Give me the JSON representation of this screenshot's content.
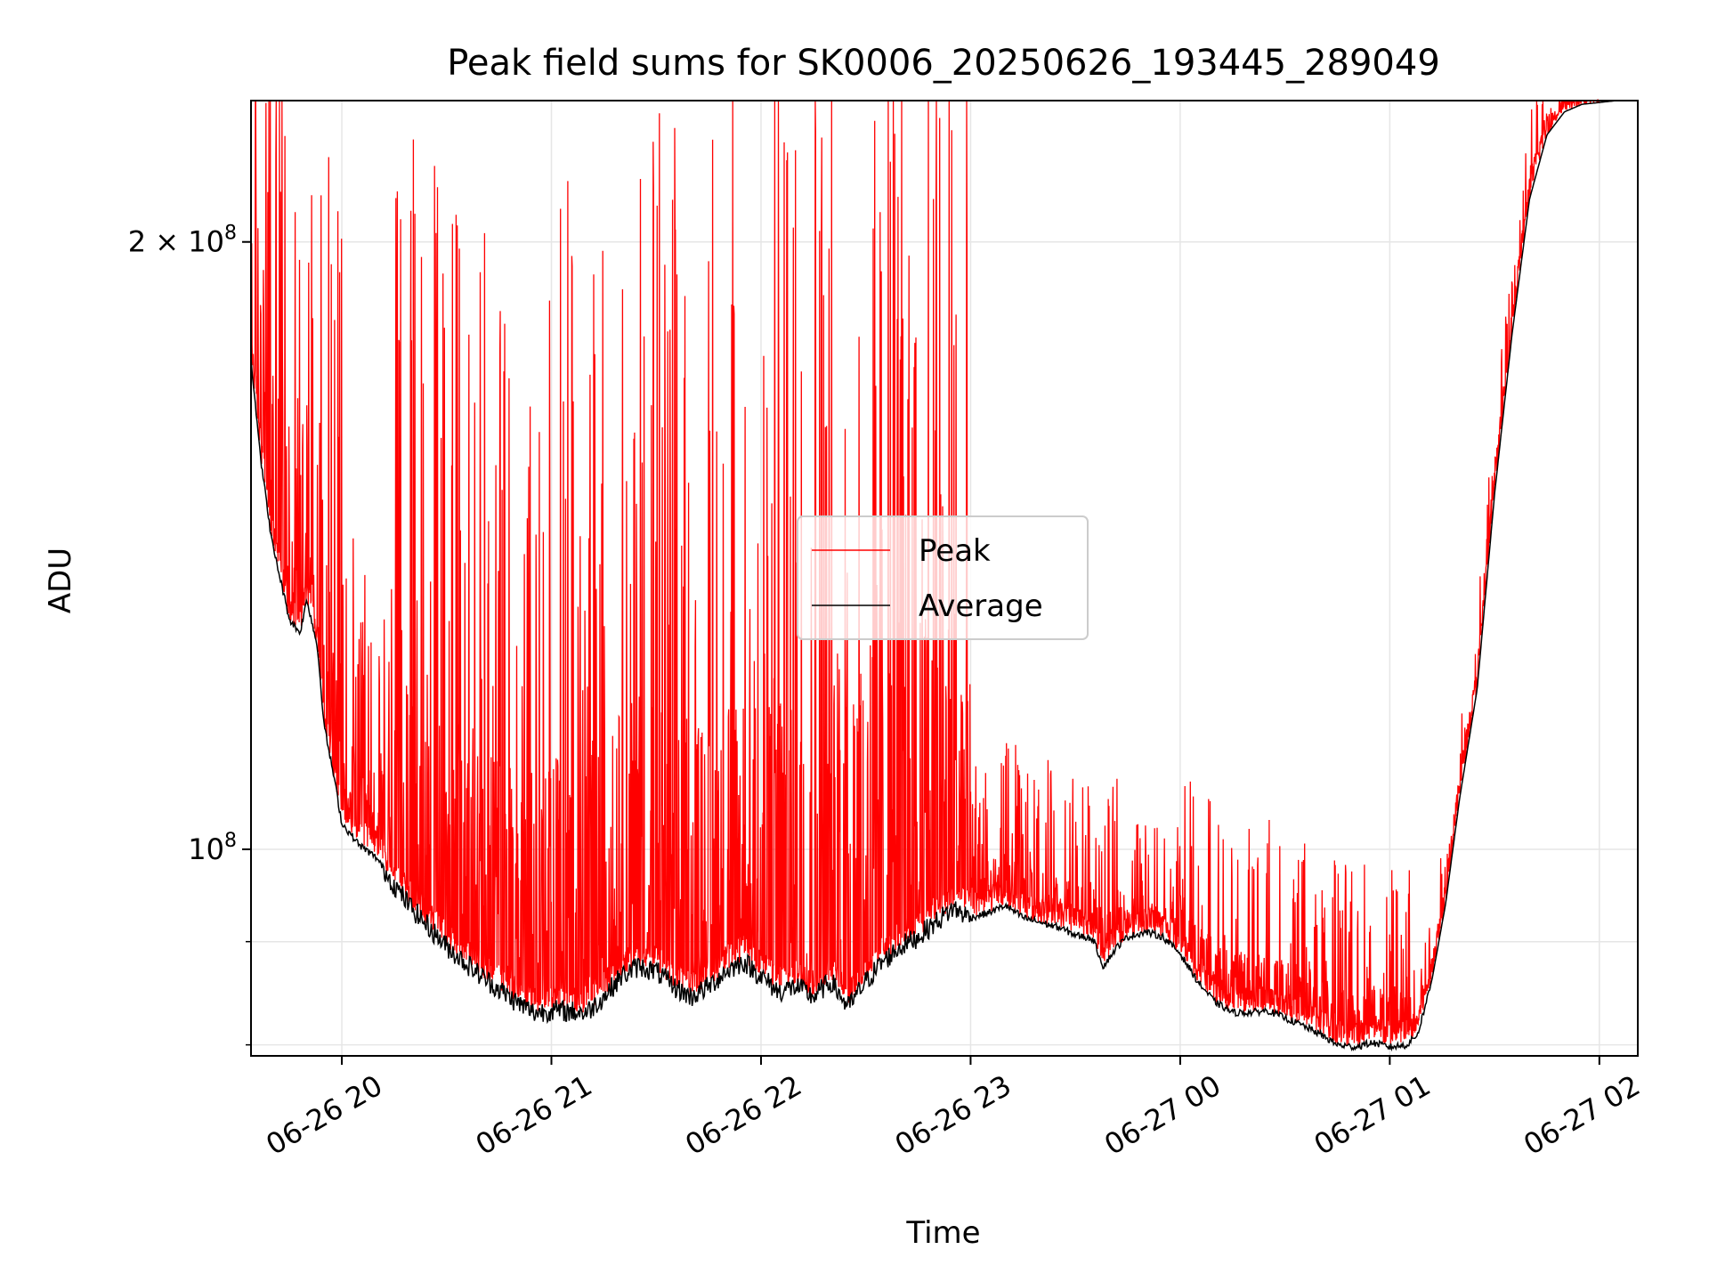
{
  "chart_data": {
    "type": "line",
    "title": "Peak field sums for SK0006_20250626_193445_289049",
    "xlabel": "Time",
    "ylabel": "ADU",
    "y_scale": "log",
    "ylim": [
      79000000,
      235000000
    ],
    "xlim": [
      "06-26 19:34",
      "06-27 02:11"
    ],
    "x_ticks": [
      {
        "t": "06-26 20:00",
        "label": "06-26 20"
      },
      {
        "t": "06-26 21:00",
        "label": "06-26 21"
      },
      {
        "t": "06-26 22:00",
        "label": "06-26 22"
      },
      {
        "t": "06-26 23:00",
        "label": "06-26 23"
      },
      {
        "t": "06-27 00:00",
        "label": "06-27 00"
      },
      {
        "t": "06-27 01:00",
        "label": "06-27 01"
      },
      {
        "t": "06-27 02:00",
        "label": "06-27 02"
      }
    ],
    "y_ticks": [
      {
        "v": 100000000,
        "base": "10",
        "exp": "8",
        "coef": ""
      },
      {
        "v": 200000000,
        "base": "10",
        "exp": "8",
        "coef": "2 × "
      }
    ],
    "y_minor_ticks": [
      80000000,
      90000000
    ],
    "grid": true,
    "legend_position": "center",
    "series": [
      {
        "name": "Average",
        "color": "#000000",
        "points": [
          [
            "06-26 19:34",
            175000000
          ],
          [
            "06-26 19:37",
            155000000
          ],
          [
            "06-26 19:40",
            142000000
          ],
          [
            "06-26 19:45",
            130000000
          ],
          [
            "06-26 19:48",
            128000000
          ],
          [
            "06-26 19:50",
            133000000
          ],
          [
            "06-26 19:53",
            126000000
          ],
          [
            "06-26 19:55",
            115000000
          ],
          [
            "06-26 19:58",
            108000000
          ],
          [
            "06-26 20:00",
            103000000
          ],
          [
            "06-26 20:05",
            100500000
          ],
          [
            "06-26 20:10",
            99000000
          ],
          [
            "06-26 20:15",
            96000000
          ],
          [
            "06-26 20:20",
            93500000
          ],
          [
            "06-26 20:30",
            89500000
          ],
          [
            "06-26 20:40",
            86500000
          ],
          [
            "06-26 20:50",
            84000000
          ],
          [
            "06-26 20:55",
            83000000
          ],
          [
            "06-26 21:00",
            83200000
          ],
          [
            "06-26 21:10",
            83000000
          ],
          [
            "06-26 21:15",
            84500000
          ],
          [
            "06-26 21:20",
            86500000
          ],
          [
            "06-26 21:25",
            87500000
          ],
          [
            "06-26 21:30",
            87000000
          ],
          [
            "06-26 21:35",
            85500000
          ],
          [
            "06-26 21:40",
            84500000
          ],
          [
            "06-26 21:45",
            85500000
          ],
          [
            "06-26 21:50",
            87000000
          ],
          [
            "06-26 21:55",
            88000000
          ],
          [
            "06-26 22:00",
            86500000
          ],
          [
            "06-26 22:05",
            85000000
          ],
          [
            "06-26 22:10",
            85500000
          ],
          [
            "06-26 22:15",
            84500000
          ],
          [
            "06-26 22:20",
            86000000
          ],
          [
            "06-26 22:25",
            83500000
          ],
          [
            "06-26 22:30",
            86000000
          ],
          [
            "06-26 22:35",
            88000000
          ],
          [
            "06-26 22:40",
            89500000
          ],
          [
            "06-26 22:45",
            90500000
          ],
          [
            "06-26 22:50",
            92000000
          ],
          [
            "06-26 22:55",
            93500000
          ],
          [
            "06-26 23:00",
            92500000
          ],
          [
            "06-26 23:05",
            93000000
          ],
          [
            "06-26 23:10",
            93800000
          ],
          [
            "06-26 23:15",
            92500000
          ],
          [
            "06-26 23:20",
            92000000
          ],
          [
            "06-26 23:25",
            91500000
          ],
          [
            "06-26 23:30",
            90700000
          ],
          [
            "06-26 23:35",
            90300000
          ],
          [
            "06-26 23:38",
            87500000
          ],
          [
            "06-26 23:42",
            89500000
          ],
          [
            "06-26 23:45",
            90500000
          ],
          [
            "06-26 23:50",
            91000000
          ],
          [
            "06-26 23:55",
            90500000
          ],
          [
            "06-27 00:00",
            88800000
          ],
          [
            "06-27 00:05",
            86000000
          ],
          [
            "06-27 00:10",
            84000000
          ],
          [
            "06-27 00:15",
            83000000
          ],
          [
            "06-27 00:20",
            83000000
          ],
          [
            "06-27 00:25",
            83200000
          ],
          [
            "06-27 00:30",
            82500000
          ],
          [
            "06-27 00:35",
            81800000
          ],
          [
            "06-27 00:40",
            81000000
          ],
          [
            "06-27 00:45",
            80000000
          ],
          [
            "06-27 00:50",
            79800000
          ],
          [
            "06-27 00:55",
            80200000
          ],
          [
            "06-27 01:00",
            79800000
          ],
          [
            "06-27 01:05",
            80000000
          ],
          [
            "06-27 01:08",
            81000000
          ],
          [
            "06-27 01:12",
            86000000
          ],
          [
            "06-27 01:16",
            94000000
          ],
          [
            "06-27 01:20",
            106000000
          ],
          [
            "06-27 01:25",
            120000000
          ],
          [
            "06-27 01:30",
            150000000
          ],
          [
            "06-27 01:35",
            180000000
          ],
          [
            "06-27 01:40",
            210000000
          ],
          [
            "06-27 01:45",
            226000000
          ],
          [
            "06-27 01:50",
            232000000
          ],
          [
            "06-27 01:55",
            234000000
          ],
          [
            "06-27 02:00",
            234500000
          ],
          [
            "06-27 02:05",
            235000000
          ],
          [
            "06-27 02:11",
            235000000
          ]
        ]
      },
      {
        "name": "Peak",
        "color": "#ff0000",
        "points": []
      }
    ]
  }
}
